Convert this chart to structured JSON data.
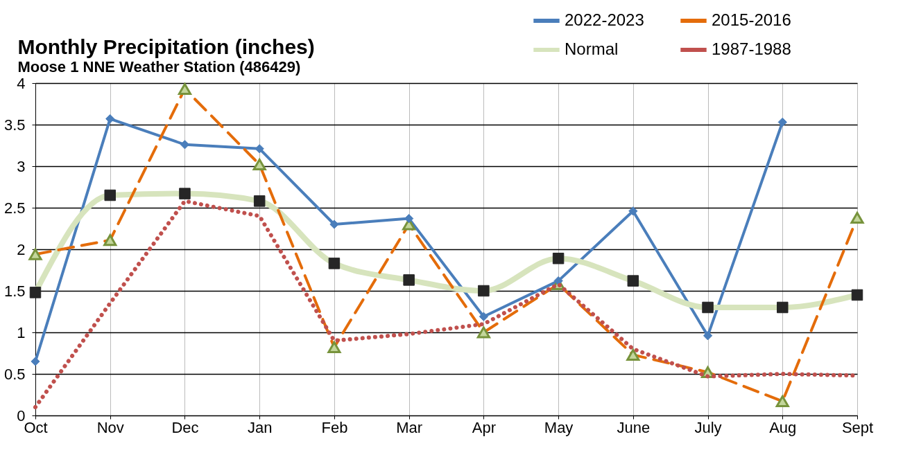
{
  "chart_data": {
    "type": "line",
    "title": "Monthly Precipitation (inches)",
    "subtitle": "Moose 1 NNE Weather Station (486429)",
    "categories": [
      "Oct",
      "Nov",
      "Dec",
      "Jan",
      "Feb",
      "Mar",
      "Apr",
      "May",
      "June",
      "July",
      "Aug",
      "Sept"
    ],
    "series": [
      {
        "name": "2022-2023",
        "color": "#4a7ebb",
        "marker": "diamond",
        "line_style": "solid",
        "values": [
          0.65,
          3.57,
          3.26,
          3.21,
          2.3,
          2.37,
          1.19,
          1.62,
          2.46,
          0.96,
          3.53,
          null
        ]
      },
      {
        "name": "Normal",
        "color": "#d7e4bd",
        "marker": "square",
        "line_style": "solid",
        "values": [
          1.48,
          2.65,
          2.67,
          2.58,
          1.83,
          1.63,
          1.5,
          1.89,
          1.62,
          1.3,
          1.3,
          1.45
        ]
      },
      {
        "name": "2015-2016",
        "color": "#e46c0a",
        "marker": "triangle",
        "line_style": "dashed",
        "values": [
          1.94,
          2.11,
          3.93,
          3.02,
          0.82,
          2.3,
          1.0,
          1.58,
          0.73,
          0.52,
          0.17,
          2.38
        ]
      },
      {
        "name": "1987-1988",
        "color": "#c0504d",
        "marker": "none",
        "line_style": "dotted",
        "values": [
          0.1,
          1.35,
          2.58,
          2.4,
          0.9,
          0.98,
          1.1,
          1.58,
          0.8,
          0.47,
          0.5,
          0.48
        ]
      }
    ],
    "ylim": [
      0,
      4
    ],
    "yticks": [
      0,
      0.5,
      1,
      1.5,
      2,
      2.5,
      3,
      3.5,
      4
    ],
    "grid": true,
    "legend": "top right"
  }
}
